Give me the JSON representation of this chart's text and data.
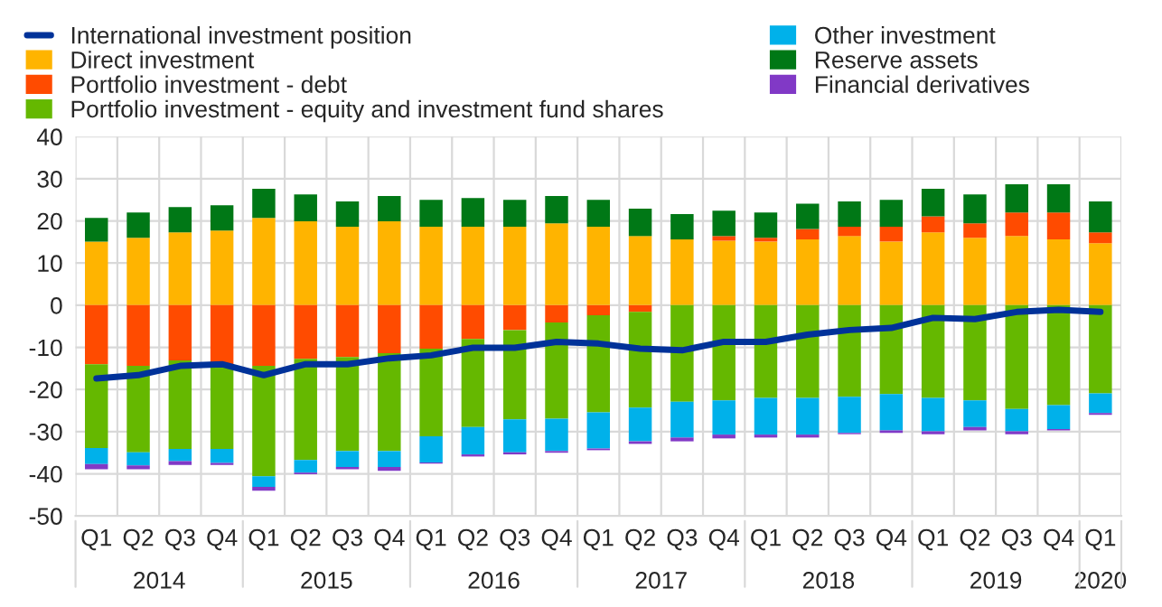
{
  "chart_data": {
    "type": "bar",
    "stacked": true,
    "categories": [
      "Q1",
      "Q2",
      "Q3",
      "Q4",
      "Q1",
      "Q2",
      "Q3",
      "Q4",
      "Q1",
      "Q2",
      "Q3",
      "Q4",
      "Q1",
      "Q2",
      "Q3",
      "Q4",
      "Q1",
      "Q2",
      "Q3",
      "Q4",
      "Q1",
      "Q2",
      "Q3",
      "Q4",
      "Q1"
    ],
    "annotations": [
      "2014",
      "2015",
      "2016",
      "2017",
      "2018",
      "2019",
      "2020"
    ],
    "series": [
      {
        "name": "International investment position",
        "type": "line",
        "color": "#003299",
        "values": [
          -17.4,
          -16.6,
          -14.4,
          -14,
          -16.6,
          -14,
          -14,
          -12.6,
          -11.9,
          -10.1,
          -10.1,
          -8.7,
          -9.1,
          -10.3,
          -10.7,
          -8.7,
          -8.7,
          -7,
          -5.9,
          -5.4,
          -3,
          -3.3,
          -1.6,
          -1.1,
          -1.6
        ]
      },
      {
        "name": "Direct investment",
        "color": "#ffb400",
        "values": [
          15.1,
          16,
          17.3,
          17.7,
          20.7,
          19.9,
          18.6,
          19.9,
          18.6,
          18.6,
          18.6,
          19.4,
          18.6,
          16.4,
          15.6,
          15.3,
          15.1,
          15.6,
          16.4,
          15.1,
          17.3,
          16,
          16.4,
          15.6,
          14.7
        ]
      },
      {
        "name": "Portfolio investment - debt",
        "color": "#ff4b00",
        "values": [
          -14,
          -14.4,
          -13.1,
          -14,
          -14.4,
          -12.7,
          -12.3,
          -11.4,
          -10.3,
          -8,
          -5.9,
          -4.1,
          -2.4,
          -1.6,
          0,
          1.1,
          0.9,
          2.5,
          2.2,
          3.5,
          3.8,
          3.4,
          5.6,
          6.4,
          2.6
        ]
      },
      {
        "name": "Portfolio investment - equity and investment fund shares",
        "color": "#65b800",
        "values": [
          -19.9,
          -20.5,
          -21,
          -20.1,
          -26.2,
          -24,
          -22.3,
          -23.2,
          -20.8,
          -20.9,
          -21.2,
          -22.8,
          -23,
          -22.7,
          -22.9,
          -22.6,
          -22,
          -22,
          -21.7,
          -21.1,
          -22,
          -22.6,
          -24.6,
          -23.7,
          -20.9
        ]
      },
      {
        "name": "Other investment",
        "color": "#00b1ea",
        "values": [
          -3.8,
          -3.1,
          -2.9,
          -3.3,
          -2.5,
          -3,
          -3.8,
          -3.8,
          -6.2,
          -6.5,
          -7.8,
          -7.7,
          -8.6,
          -8,
          -8.5,
          -8.1,
          -8.7,
          -8.7,
          -8.6,
          -8.6,
          -7.9,
          -6.3,
          -5.3,
          -5.7,
          -4.7
        ]
      },
      {
        "name": "Reserve assets",
        "color": "#007816",
        "values": [
          5.6,
          6,
          6,
          6,
          6.9,
          6.4,
          6,
          6,
          6.4,
          6.8,
          6.4,
          6.5,
          6.4,
          6.5,
          6,
          6,
          6,
          6,
          6,
          6.4,
          6.5,
          6.9,
          6.7,
          6.7,
          7.3
        ]
      },
      {
        "name": "Financial derivatives",
        "color": "#8139c6",
        "values": [
          -1.2,
          -0.9,
          -0.9,
          -0.5,
          -0.9,
          -0.4,
          -0.5,
          -0.9,
          -0.3,
          -0.5,
          -0.5,
          -0.4,
          -0.4,
          -0.6,
          -0.9,
          -0.9,
          -0.7,
          -0.7,
          -0.3,
          -0.6,
          -0.7,
          -0.8,
          -0.7,
          -0.3,
          -0.4
        ]
      }
    ],
    "ylim": [
      -50,
      40
    ],
    "yticks": [
      -50,
      -40,
      -30,
      -20,
      -10,
      0,
      10,
      20,
      30,
      40
    ],
    "grid": true,
    "legend": "top left",
    "marker": "none",
    "line_style": "solid"
  }
}
